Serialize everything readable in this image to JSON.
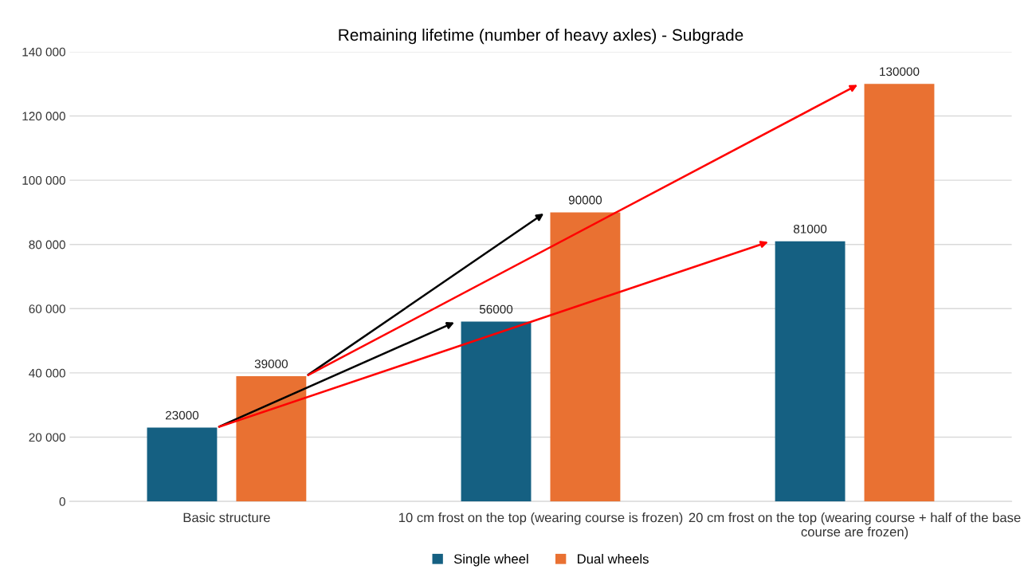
{
  "chart_data": {
    "type": "bar",
    "title": "Remaining lifetime (number of heavy axles) - Subgrade",
    "categories": [
      "Basic structure",
      "10 cm frost on the top (wearing course is frozen)",
      "20 cm frost on the top (wearing course + half of the base course are frozen)"
    ],
    "series": [
      {
        "name": "Single wheel",
        "color": "#156082",
        "values": [
          23000,
          56000,
          81000
        ]
      },
      {
        "name": "Dual wheels",
        "color": "#e97132",
        "values": [
          39000,
          90000,
          130000
        ]
      }
    ],
    "ylim": [
      0,
      140000
    ],
    "yticks": [
      {
        "value": 0,
        "label": "0"
      },
      {
        "value": 20000,
        "label": "20 000"
      },
      {
        "value": 40000,
        "label": "40 000"
      },
      {
        "value": 60000,
        "label": "60 000"
      },
      {
        "value": 80000,
        "label": "80 000"
      },
      {
        "value": 100000,
        "label": "100 000"
      },
      {
        "value": 120000,
        "label": "120 000"
      },
      {
        "value": 140000,
        "label": "140 000"
      }
    ],
    "grid": "y",
    "legend": "bottom",
    "data_labels": true
  }
}
